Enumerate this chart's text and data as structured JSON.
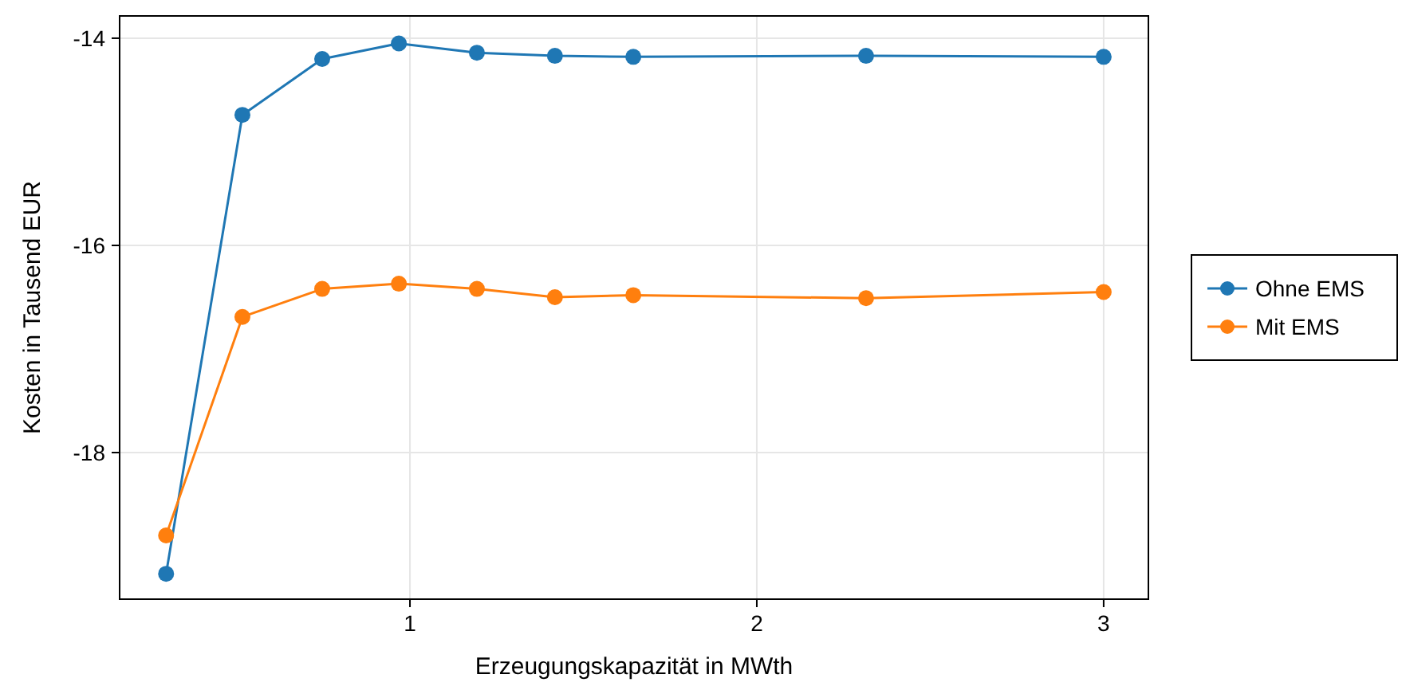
{
  "chart_data": {
    "type": "line",
    "xlabel": "Erzeugungskapazität in MWth",
    "ylabel": "Kosten in Tausend EUR",
    "xlim": [
      0.163,
      3.129
    ],
    "xticks": [
      1,
      2,
      3
    ],
    "ylim": [
      -19.415,
      -13.785
    ],
    "yticks": [
      -18,
      -16,
      -14
    ],
    "grid": true,
    "legend": "right",
    "marker": "circle",
    "line_style": "solid",
    "series": [
      {
        "name": "Ohne EMS",
        "color": "#1f77b4",
        "x": [
          0.297,
          0.517,
          0.747,
          0.968,
          1.193,
          1.418,
          1.644,
          2.315,
          3.0
        ],
        "values": [
          -19.17,
          -14.74,
          -14.2,
          -14.05,
          -14.14,
          -14.17,
          -14.18,
          -14.17,
          -14.18
        ]
      },
      {
        "name": "Mit EMS",
        "color": "#ff7f0e",
        "x": [
          0.297,
          0.517,
          0.747,
          0.968,
          1.193,
          1.418,
          1.644,
          2.315,
          3.0
        ],
        "values": [
          -18.8,
          -16.69,
          -16.42,
          -16.37,
          -16.42,
          -16.5,
          -16.48,
          -16.51,
          -16.45
        ]
      }
    ]
  }
}
